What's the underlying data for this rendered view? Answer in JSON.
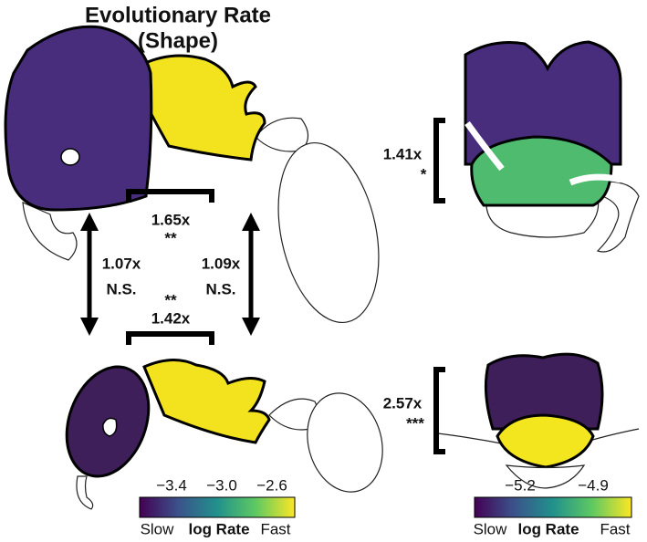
{
  "title": {
    "line1": "Evolutionary Rate",
    "line2": "(Shape)"
  },
  "comparisons": {
    "top_heads": {
      "ratio": "1.65x",
      "significance": "**"
    },
    "left_vertical": {
      "ratio": "1.07x",
      "significance": "N.S."
    },
    "right_vertical": {
      "ratio": "1.09x",
      "significance": "N.S."
    },
    "bottom_meso": {
      "significance": "**",
      "ratio": "1.42x"
    },
    "right_top": {
      "ratio": "1.41x",
      "significance": "*"
    },
    "right_bottom": {
      "ratio": "2.57x",
      "significance": "***"
    }
  },
  "colorbars": {
    "left": {
      "ticks": [
        "−3.4",
        "−3.0",
        "−2.6"
      ],
      "low": "Slow",
      "label": "log Rate",
      "high": "Fast"
    },
    "right": {
      "ticks": [
        "−5.2",
        "−4.9"
      ],
      "low": "Slow",
      "label": "log Rate",
      "high": "Fast"
    }
  }
}
